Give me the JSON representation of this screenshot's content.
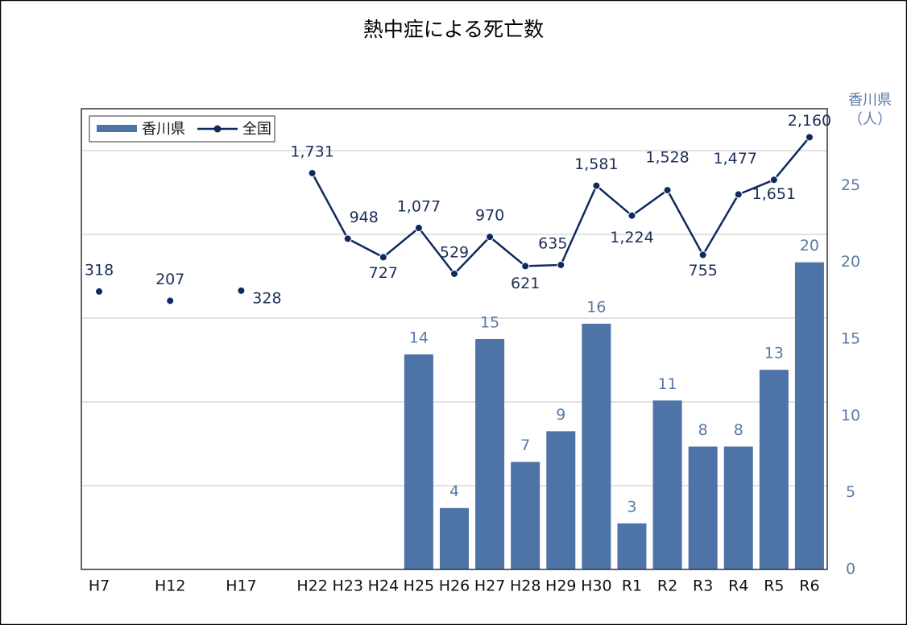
{
  "chart_data": {
    "type": "combo",
    "title": "熱中症による死亡数",
    "categories": [
      "H7",
      null,
      "H12",
      null,
      "H17",
      null,
      "H22",
      "H23",
      "H24",
      "H25",
      "H26",
      "H27",
      "H28",
      "H29",
      "H30",
      "R1",
      "R2",
      "R3",
      "R4",
      "R5",
      "R6"
    ],
    "series": [
      {
        "name": "香川県",
        "type": "bar",
        "axis": "y2",
        "color": "#4e73a6",
        "label_color": "#5b7aa6",
        "values": [
          null,
          null,
          null,
          null,
          null,
          null,
          null,
          null,
          null,
          14,
          4,
          15,
          7,
          9,
          16,
          3,
          11,
          8,
          8,
          13,
          20
        ]
      },
      {
        "name": "全国",
        "type": "line",
        "color": "#0f2a5f",
        "label_color": "#1c2f5a",
        "values": [
          318,
          null,
          207,
          null,
          328,
          null,
          1731,
          948,
          727,
          1077,
          529,
          970,
          621,
          635,
          1581,
          1224,
          1528,
          755,
          1477,
          1651,
          2160
        ],
        "value_labels": [
          "318",
          null,
          "207",
          null,
          "328",
          null,
          "1,731",
          "948",
          "727",
          "1,077",
          "529",
          "970",
          "621",
          "635",
          "1,581",
          "1,224",
          "1,528",
          "755",
          "1,477",
          "1,651",
          "2,160"
        ]
      }
    ],
    "ylim": [
      -3000,
      2500
    ],
    "yticks": [
      -2000,
      -1000,
      0,
      1000,
      2000
    ],
    "y2lim": [
      0,
      30
    ],
    "y2ticks": [
      0,
      5,
      10,
      15,
      20,
      25
    ],
    "y2label": [
      "香川県",
      "（人）"
    ],
    "grid": true,
    "legend": "upper left"
  }
}
